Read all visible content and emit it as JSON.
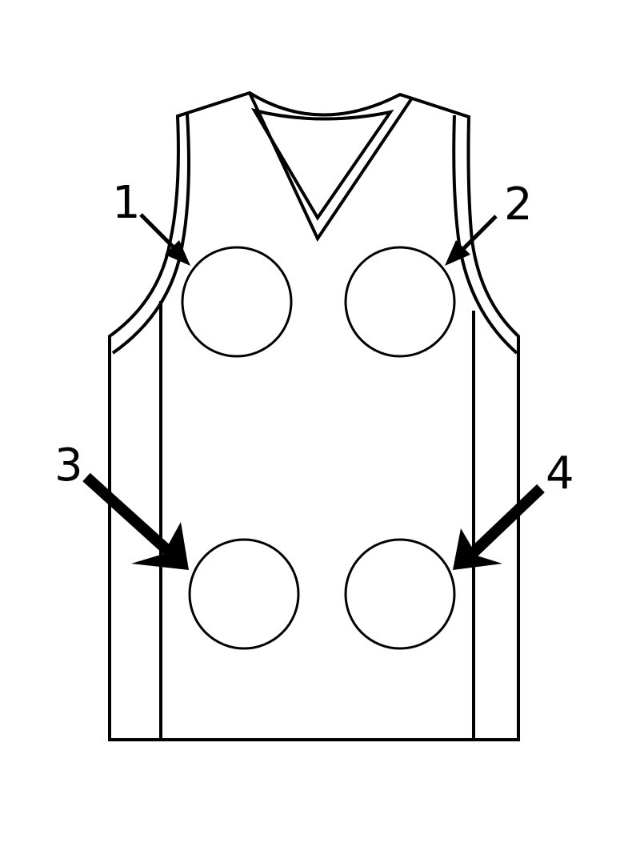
{
  "diagram": {
    "stroke_color": "#000000",
    "background": "#ffffff",
    "spots": [
      {
        "label": "1",
        "arrow_style": "thin"
      },
      {
        "label": "2",
        "arrow_style": "thin"
      },
      {
        "label": "3",
        "arrow_style": "thick"
      },
      {
        "label": "4",
        "arrow_style": "thick"
      }
    ]
  }
}
